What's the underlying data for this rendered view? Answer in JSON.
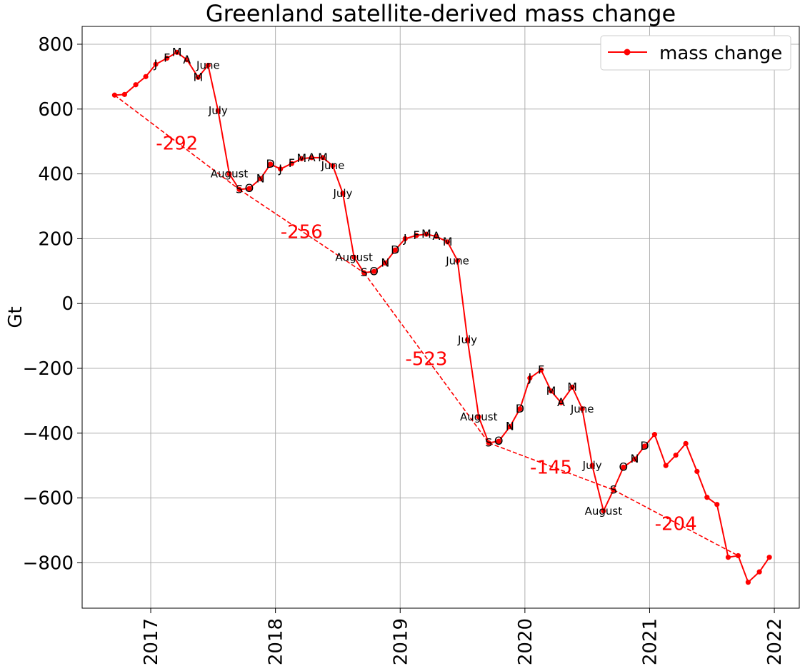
{
  "chart_data": {
    "type": "line",
    "title": "Greenland satellite-derived mass change",
    "ylabel": "Gt",
    "xlabel": "",
    "xlim": [
      2016.45,
      2022.2
    ],
    "ylim": [
      -940,
      855
    ],
    "x_ticks": [
      2017,
      2018,
      2019,
      2020,
      2021,
      2022
    ],
    "x_tick_labels": [
      "2017",
      "2018",
      "2019",
      "2020",
      "2021",
      "2022"
    ],
    "y_ticks": [
      800,
      600,
      400,
      200,
      0,
      -200,
      -400,
      -600,
      -800
    ],
    "y_tick_labels": [
      "800",
      "600",
      "400",
      "200",
      "0",
      "−200",
      "−400",
      "−600",
      "−800"
    ],
    "grid": true,
    "legend": {
      "position": "top-right",
      "entries": [
        "mass change"
      ]
    },
    "colors": {
      "series": "#ff0000",
      "trend": "#ff0000",
      "grid": "#b0b0b0"
    },
    "series": [
      {
        "name": "mass change",
        "x": [
          2016.71,
          2016.79,
          2016.88,
          2016.96,
          2017.04,
          2017.13,
          2017.21,
          2017.29,
          2017.38,
          2017.46,
          2017.54,
          2017.63,
          2017.71,
          2017.79,
          2017.88,
          2017.96,
          2018.04,
          2018.13,
          2018.21,
          2018.29,
          2018.38,
          2018.46,
          2018.54,
          2018.63,
          2018.71,
          2018.79,
          2018.88,
          2018.96,
          2019.04,
          2019.13,
          2019.21,
          2019.29,
          2019.38,
          2019.46,
          2019.54,
          2019.63,
          2019.71,
          2019.79,
          2019.88,
          2019.96,
          2020.04,
          2020.13,
          2020.21,
          2020.29,
          2020.38,
          2020.46,
          2020.54,
          2020.63,
          2020.71,
          2020.79,
          2020.88,
          2020.96,
          2021.04,
          2021.13,
          2021.21,
          2021.29,
          2021.38,
          2021.46,
          2021.54,
          2021.63,
          2021.71,
          2021.79,
          2021.88,
          2021.96
        ],
        "y": [
          643,
          645,
          675,
          700,
          738,
          757,
          775,
          752,
          698,
          735,
          595,
          400,
          352,
          355,
          385,
          430,
          415,
          432,
          447,
          450,
          450,
          425,
          340,
          143,
          95,
          99,
          125,
          165,
          200,
          210,
          214,
          207,
          190,
          132,
          -112,
          -350,
          -430,
          -425,
          -380,
          -325,
          -230,
          -205,
          -270,
          -306,
          -258,
          -325,
          -500,
          -640,
          -575,
          -505,
          -480,
          -440,
          -404,
          -500,
          -468,
          -432,
          -518,
          -598,
          -620,
          -783,
          -778,
          -860,
          -828,
          -783
        ]
      }
    ],
    "month_labels": [
      {
        "text": "J",
        "x": 2017.04,
        "y": 738
      },
      {
        "text": "F",
        "x": 2017.13,
        "y": 757
      },
      {
        "text": "M",
        "x": 2017.21,
        "y": 775
      },
      {
        "text": "A",
        "x": 2017.29,
        "y": 752
      },
      {
        "text": "M",
        "x": 2017.38,
        "y": 698
      },
      {
        "text": "June",
        "x": 2017.46,
        "y": 735
      },
      {
        "text": "July",
        "x": 2017.54,
        "y": 595
      },
      {
        "text": "August",
        "x": 2017.63,
        "y": 400
      },
      {
        "text": "S",
        "x": 2017.71,
        "y": 352
      },
      {
        "text": "O",
        "x": 2017.79,
        "y": 355
      },
      {
        "text": "N",
        "x": 2017.88,
        "y": 385
      },
      {
        "text": "D",
        "x": 2017.96,
        "y": 430
      },
      {
        "text": "J",
        "x": 2018.04,
        "y": 415
      },
      {
        "text": "F",
        "x": 2018.13,
        "y": 432
      },
      {
        "text": "M",
        "x": 2018.21,
        "y": 447
      },
      {
        "text": "A",
        "x": 2018.29,
        "y": 450
      },
      {
        "text": "M",
        "x": 2018.38,
        "y": 450
      },
      {
        "text": "June",
        "x": 2018.46,
        "y": 425
      },
      {
        "text": "July",
        "x": 2018.54,
        "y": 340
      },
      {
        "text": "August",
        "x": 2018.63,
        "y": 143
      },
      {
        "text": "S",
        "x": 2018.71,
        "y": 95
      },
      {
        "text": "O",
        "x": 2018.79,
        "y": 99
      },
      {
        "text": "N",
        "x": 2018.88,
        "y": 125
      },
      {
        "text": "D",
        "x": 2018.96,
        "y": 165
      },
      {
        "text": "J",
        "x": 2019.04,
        "y": 200
      },
      {
        "text": "F",
        "x": 2019.13,
        "y": 210
      },
      {
        "text": "M",
        "x": 2019.21,
        "y": 214
      },
      {
        "text": "A",
        "x": 2019.29,
        "y": 207
      },
      {
        "text": "M",
        "x": 2019.38,
        "y": 190
      },
      {
        "text": "June",
        "x": 2019.46,
        "y": 132
      },
      {
        "text": "July",
        "x": 2019.54,
        "y": -112
      },
      {
        "text": "August",
        "x": 2019.63,
        "y": -350
      },
      {
        "text": "S",
        "x": 2019.71,
        "y": -430
      },
      {
        "text": "O",
        "x": 2019.79,
        "y": -425
      },
      {
        "text": "N",
        "x": 2019.88,
        "y": -380
      },
      {
        "text": "D",
        "x": 2019.96,
        "y": -325
      },
      {
        "text": "J",
        "x": 2020.04,
        "y": -230
      },
      {
        "text": "F",
        "x": 2020.13,
        "y": -205
      },
      {
        "text": "M",
        "x": 2020.21,
        "y": -270
      },
      {
        "text": "A",
        "x": 2020.29,
        "y": -306
      },
      {
        "text": "M",
        "x": 2020.38,
        "y": -258
      },
      {
        "text": "June",
        "x": 2020.46,
        "y": -325
      },
      {
        "text": "July",
        "x": 2020.54,
        "y": -500
      },
      {
        "text": "August",
        "x": 2020.63,
        "y": -640
      },
      {
        "text": "S",
        "x": 2020.71,
        "y": -575
      },
      {
        "text": "O",
        "x": 2020.79,
        "y": -505
      },
      {
        "text": "N",
        "x": 2020.88,
        "y": -480
      },
      {
        "text": "D",
        "x": 2020.96,
        "y": -440
      }
    ],
    "trend_segments": [
      {
        "label": "-292",
        "x1": 2016.71,
        "y1": 643,
        "x2": 2017.71,
        "y2": 352
      },
      {
        "label": "-256",
        "x1": 2017.71,
        "y1": 352,
        "x2": 2018.71,
        "y2": 95
      },
      {
        "label": "-523",
        "x1": 2018.71,
        "y1": 95,
        "x2": 2019.71,
        "y2": -430
      },
      {
        "label": "-145",
        "x1": 2019.71,
        "y1": -430,
        "x2": 2020.71,
        "y2": -575
      },
      {
        "label": "-204",
        "x1": 2020.71,
        "y1": -575,
        "x2": 2021.71,
        "y2": -778
      }
    ]
  }
}
